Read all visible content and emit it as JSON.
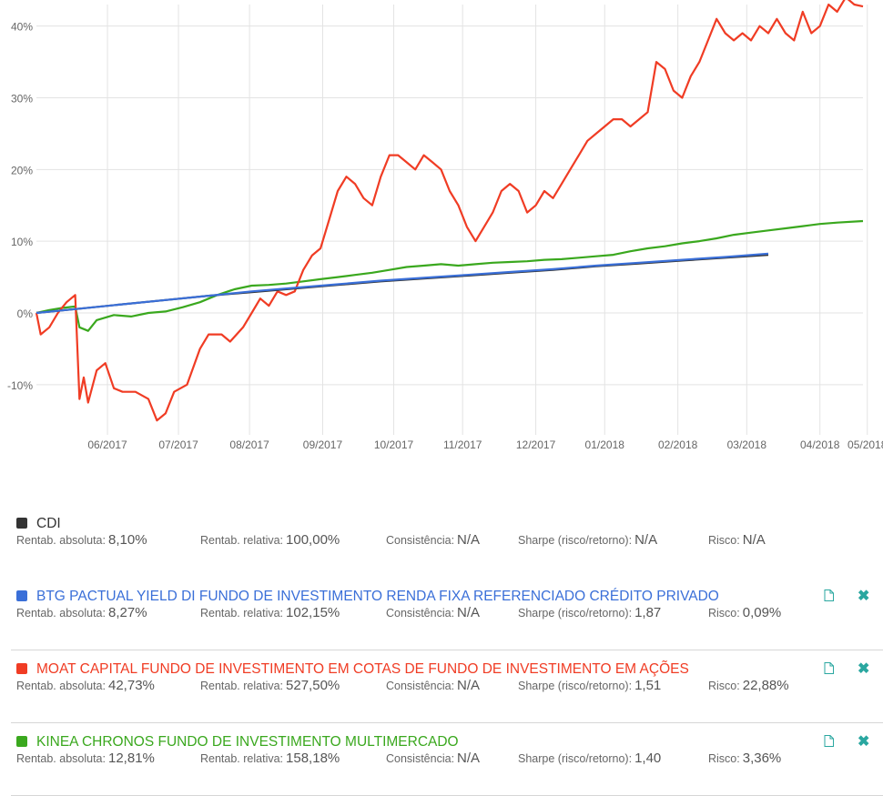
{
  "chart_data": {
    "type": "line",
    "x_ticks": [
      "06/2017",
      "07/2017",
      "08/2017",
      "09/2017",
      "10/2017",
      "11/2017",
      "12/2017",
      "01/2018",
      "02/2018",
      "03/2018",
      "04/2018",
      "05/2018"
    ],
    "y_ticks": [
      "40%",
      "30%",
      "20%",
      "10%",
      "0%",
      "-10%"
    ],
    "y_tick_values": [
      40,
      30,
      20,
      10,
      0,
      -10
    ],
    "ylim": [
      -17,
      43
    ],
    "grid": true,
    "series": [
      {
        "name": "CDI",
        "color": "#333333",
        "points": [
          [
            0,
            0
          ],
          [
            1,
            0.6
          ],
          [
            2,
            1.2
          ],
          [
            3,
            1.8
          ],
          [
            4,
            2.4
          ],
          [
            5,
            2.9
          ],
          [
            6,
            3.4
          ],
          [
            7,
            3.9
          ],
          [
            8,
            4.4
          ],
          [
            9,
            4.8
          ],
          [
            10,
            5.2
          ],
          [
            11,
            5.6
          ],
          [
            12,
            6.0
          ],
          [
            13,
            6.5
          ],
          [
            14,
            6.9
          ],
          [
            15,
            7.3
          ],
          [
            16,
            7.7
          ],
          [
            17,
            8.1
          ]
        ]
      },
      {
        "name": "BTG PACTUAL YIELD DI FUNDO DE INVESTIMENTO RENDA FIXA REFERENCIADO CRÉDITO PRIVADO",
        "color": "#3a6fd8",
        "points": [
          [
            0,
            0
          ],
          [
            1,
            0.6
          ],
          [
            2,
            1.2
          ],
          [
            3,
            1.8
          ],
          [
            4,
            2.4
          ],
          [
            5,
            3.0
          ],
          [
            6,
            3.5
          ],
          [
            7,
            4.0
          ],
          [
            8,
            4.5
          ],
          [
            9,
            4.9
          ],
          [
            10,
            5.3
          ],
          [
            11,
            5.7
          ],
          [
            12,
            6.1
          ],
          [
            13,
            6.6
          ],
          [
            14,
            7.0
          ],
          [
            15,
            7.4
          ],
          [
            16,
            7.8
          ],
          [
            17,
            8.27
          ]
        ]
      },
      {
        "name": "MOAT CAPITAL FUNDO DE INVESTIMENTO EM COTAS DE FUNDO DE INVESTIMENTO EM AÇÕES",
        "color": "#f03c24",
        "points": [
          [
            0,
            0
          ],
          [
            0.1,
            -3
          ],
          [
            0.3,
            -2
          ],
          [
            0.5,
            0
          ],
          [
            0.7,
            1.5
          ],
          [
            0.9,
            2.5
          ],
          [
            1.0,
            -12
          ],
          [
            1.1,
            -9
          ],
          [
            1.2,
            -12.5
          ],
          [
            1.4,
            -8
          ],
          [
            1.6,
            -7
          ],
          [
            1.8,
            -10.5
          ],
          [
            2.0,
            -11
          ],
          [
            2.3,
            -11
          ],
          [
            2.6,
            -12
          ],
          [
            2.8,
            -15
          ],
          [
            3.0,
            -14
          ],
          [
            3.2,
            -11
          ],
          [
            3.5,
            -10
          ],
          [
            3.8,
            -5
          ],
          [
            4.0,
            -3
          ],
          [
            4.3,
            -3
          ],
          [
            4.5,
            -4
          ],
          [
            4.8,
            -2
          ],
          [
            5.0,
            0
          ],
          [
            5.2,
            2
          ],
          [
            5.4,
            1
          ],
          [
            5.6,
            3
          ],
          [
            5.8,
            2.5
          ],
          [
            6.0,
            3
          ],
          [
            6.2,
            6
          ],
          [
            6.4,
            8
          ],
          [
            6.6,
            9
          ],
          [
            6.8,
            13
          ],
          [
            7.0,
            17
          ],
          [
            7.2,
            19
          ],
          [
            7.4,
            18
          ],
          [
            7.6,
            16
          ],
          [
            7.8,
            15
          ],
          [
            8.0,
            19
          ],
          [
            8.2,
            22
          ],
          [
            8.4,
            22
          ],
          [
            8.6,
            21
          ],
          [
            8.8,
            20
          ],
          [
            9.0,
            22
          ],
          [
            9.2,
            21
          ],
          [
            9.4,
            20
          ],
          [
            9.6,
            17
          ],
          [
            9.8,
            15
          ],
          [
            10.0,
            12
          ],
          [
            10.2,
            10
          ],
          [
            10.4,
            12
          ],
          [
            10.6,
            14
          ],
          [
            10.8,
            17
          ],
          [
            11.0,
            18
          ],
          [
            11.2,
            17
          ],
          [
            11.4,
            14
          ],
          [
            11.6,
            15
          ],
          [
            11.8,
            17
          ],
          [
            12.0,
            16
          ],
          [
            12.2,
            18
          ],
          [
            12.4,
            20
          ],
          [
            12.6,
            22
          ],
          [
            12.8,
            24
          ],
          [
            13.0,
            25
          ],
          [
            13.2,
            26
          ],
          [
            13.4,
            27
          ],
          [
            13.6,
            27
          ],
          [
            13.8,
            26
          ],
          [
            14.0,
            27
          ],
          [
            14.2,
            28
          ],
          [
            14.4,
            35
          ],
          [
            14.6,
            34
          ],
          [
            14.8,
            31
          ],
          [
            15.0,
            30
          ],
          [
            15.2,
            33
          ],
          [
            15.4,
            35
          ],
          [
            15.6,
            38
          ],
          [
            15.8,
            41
          ],
          [
            16.0,
            39
          ],
          [
            16.2,
            38
          ],
          [
            16.4,
            39
          ],
          [
            16.6,
            38
          ],
          [
            16.8,
            40
          ],
          [
            17.0,
            39
          ],
          [
            17.2,
            41
          ],
          [
            17.4,
            39
          ],
          [
            17.6,
            38
          ],
          [
            17.8,
            42
          ],
          [
            18.0,
            39
          ],
          [
            18.2,
            40
          ],
          [
            18.4,
            43
          ],
          [
            18.6,
            42
          ],
          [
            18.8,
            44
          ],
          [
            19.0,
            43
          ],
          [
            19.2,
            42.73
          ]
        ]
      },
      {
        "name": "KINEA CHRONOS FUNDO DE INVESTIMENTO MULTIMERCADO",
        "color": "#3aa81e",
        "points": [
          [
            0,
            0
          ],
          [
            0.3,
            0.4
          ],
          [
            0.6,
            0.7
          ],
          [
            0.9,
            0.9
          ],
          [
            1.0,
            -2
          ],
          [
            1.2,
            -2.5
          ],
          [
            1.4,
            -1
          ],
          [
            1.8,
            -0.3
          ],
          [
            2.2,
            -0.5
          ],
          [
            2.6,
            0
          ],
          [
            3.0,
            0.2
          ],
          [
            3.4,
            0.8
          ],
          [
            3.8,
            1.5
          ],
          [
            4.2,
            2.5
          ],
          [
            4.6,
            3.3
          ],
          [
            5.0,
            3.8
          ],
          [
            5.4,
            3.9
          ],
          [
            5.8,
            4.1
          ],
          [
            6.2,
            4.4
          ],
          [
            6.6,
            4.7
          ],
          [
            7.0,
            5.0
          ],
          [
            7.4,
            5.3
          ],
          [
            7.8,
            5.6
          ],
          [
            8.2,
            6.0
          ],
          [
            8.6,
            6.4
          ],
          [
            9.0,
            6.6
          ],
          [
            9.4,
            6.8
          ],
          [
            9.8,
            6.6
          ],
          [
            10.2,
            6.8
          ],
          [
            10.6,
            7.0
          ],
          [
            11.0,
            7.1
          ],
          [
            11.4,
            7.2
          ],
          [
            11.8,
            7.4
          ],
          [
            12.2,
            7.5
          ],
          [
            12.6,
            7.7
          ],
          [
            13.0,
            7.9
          ],
          [
            13.4,
            8.1
          ],
          [
            13.8,
            8.6
          ],
          [
            14.2,
            9.0
          ],
          [
            14.6,
            9.3
          ],
          [
            15.0,
            9.7
          ],
          [
            15.4,
            10.0
          ],
          [
            15.8,
            10.4
          ],
          [
            16.2,
            10.9
          ],
          [
            16.6,
            11.2
          ],
          [
            17.0,
            11.5
          ],
          [
            17.4,
            11.8
          ],
          [
            17.8,
            12.1
          ],
          [
            18.2,
            12.4
          ],
          [
            18.6,
            12.6
          ],
          [
            19.2,
            12.81
          ]
        ]
      }
    ]
  },
  "funds": [
    {
      "name": "CDI",
      "color": "#333333",
      "title_color": "#333333",
      "abs_label": "Rentab. absoluta:",
      "abs": "8,10%",
      "rel_label": "Rentab. relativa:",
      "rel": "100,00%",
      "cons_label": "Consistência:",
      "cons": "N/A",
      "sharpe_label": "Sharpe (risco/retorno):",
      "sharpe": "N/A",
      "risk_label": "Risco:",
      "risk": "N/A",
      "has_actions": false
    },
    {
      "name": "BTG PACTUAL YIELD DI FUNDO DE INVESTIMENTO RENDA FIXA REFERENCIADO CRÉDITO PRIVADO",
      "color": "#3a6fd8",
      "title_color": "#3a6fd8",
      "abs_label": "Rentab. absoluta:",
      "abs": "8,27%",
      "rel_label": "Rentab. relativa:",
      "rel": "102,15%",
      "cons_label": "Consistência:",
      "cons": "N/A",
      "sharpe_label": "Sharpe (risco/retorno):",
      "sharpe": "1,87",
      "risk_label": "Risco:",
      "risk": "0,09%",
      "has_actions": true
    },
    {
      "name": "MOAT CAPITAL FUNDO DE INVESTIMENTO EM COTAS DE FUNDO DE INVESTIMENTO EM AÇÕES",
      "color": "#f03c24",
      "title_color": "#f03c24",
      "abs_label": "Rentab. absoluta:",
      "abs": "42,73%",
      "rel_label": "Rentab. relativa:",
      "rel": "527,50%",
      "cons_label": "Consistência:",
      "cons": "N/A",
      "sharpe_label": "Sharpe (risco/retorno):",
      "sharpe": "1,51",
      "risk_label": "Risco:",
      "risk": "22,88%",
      "has_actions": true
    },
    {
      "name": "KINEA CHRONOS FUNDO DE INVESTIMENTO MULTIMERCADO",
      "color": "#3aa81e",
      "title_color": "#3aa81e",
      "abs_label": "Rentab. absoluta:",
      "abs": "12,81%",
      "rel_label": "Rentab. relativa:",
      "rel": "158,18%",
      "cons_label": "Consistência:",
      "cons": "N/A",
      "sharpe_label": "Sharpe (risco/retorno):",
      "sharpe": "1,40",
      "risk_label": "Risco:",
      "risk": "3,36%",
      "has_actions": true
    }
  ],
  "icons": {
    "document": "document-icon",
    "close": "close-icon",
    "close_glyph": "✖"
  }
}
